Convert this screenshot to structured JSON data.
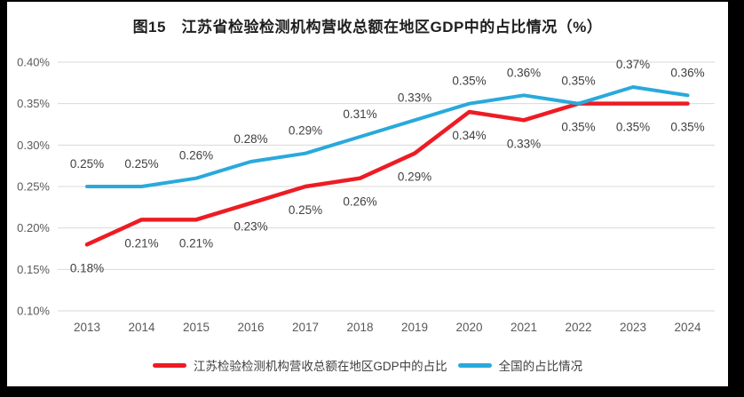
{
  "frame": {
    "background_color": "#000000",
    "chart_background_color": "#ffffff"
  },
  "chart_data": {
    "type": "line",
    "title": "图15　江苏省检验检测机构营收总额在地区GDP中的占比情况（%）",
    "xlabel": "",
    "ylabel": "",
    "categories": [
      "2013",
      "2014",
      "2015",
      "2016",
      "2017",
      "2018",
      "2019",
      "2020",
      "2021",
      "2022",
      "2023",
      "2024"
    ],
    "series": [
      {
        "name": "江苏检验检测机构营收总额在地区GDP中的占比",
        "color": "#ED1C24",
        "line_width": 4.5,
        "label_position": "below",
        "values": [
          0.18,
          0.21,
          0.21,
          0.23,
          0.25,
          0.26,
          0.29,
          0.34,
          0.33,
          0.35,
          0.35,
          0.35
        ],
        "labels": [
          "0.18%",
          "0.21%",
          "0.21%",
          "0.23%",
          "0.25%",
          "0.26%",
          "0.29%",
          "0.34%",
          "0.33%",
          "0.35%",
          "0.35%",
          "0.35%"
        ]
      },
      {
        "name": "全国的占比情况",
        "color": "#29A9DC",
        "line_width": 4,
        "label_position": "above",
        "values": [
          0.25,
          0.25,
          0.26,
          0.28,
          0.29,
          0.31,
          0.33,
          0.35,
          0.36,
          0.35,
          0.37,
          0.36
        ],
        "labels": [
          "0.25%",
          "0.25%",
          "0.26%",
          "0.28%",
          "0.29%",
          "0.31%",
          "0.33%",
          "0.35%",
          "0.36%",
          "0.35%",
          "0.37%",
          "0.36%"
        ]
      }
    ],
    "y_axis": {
      "min": 0.1,
      "max": 0.4,
      "step": 0.05,
      "tick_labels": [
        "0.40%",
        "0.35%",
        "0.30%",
        "0.25%",
        "0.20%",
        "0.15%",
        "0.10%"
      ]
    },
    "ylim": [
      0.1,
      0.4
    ],
    "grid": true,
    "grid_color": "#D9D9D9",
    "axis_text_color": "#595959",
    "data_label_color": "#404040",
    "title_color": "#1f1f1f",
    "legend_position": "bottom"
  }
}
